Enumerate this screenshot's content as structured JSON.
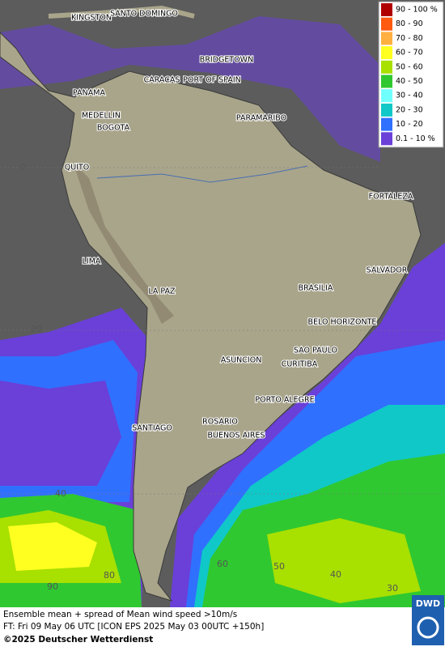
{
  "legend": [
    {
      "label": "90 - 100 %",
      "color": "#b00000"
    },
    {
      "label": "80 - 90",
      "color": "#ff5a10"
    },
    {
      "label": "70 - 80",
      "color": "#ffb040"
    },
    {
      "label": "60 - 70",
      "color": "#ffff20"
    },
    {
      "label": "50 - 60",
      "color": "#a8e000"
    },
    {
      "label": "40 - 50",
      "color": "#30c830"
    },
    {
      "label": "30 - 40",
      "color": "#70ffff"
    },
    {
      "label": "20 - 30",
      "color": "#10c8c8"
    },
    {
      "label": "10 - 20",
      "color": "#3070ff"
    },
    {
      "label": "0.1 - 10 %",
      "color": "#6a40d8"
    }
  ],
  "cities": [
    "KINGSTON",
    "SANTO DOMINGO",
    "BRIDGETOWN",
    "CARACAS",
    "PORT OF SPAIN",
    "PANAMA",
    "MEDELLIN",
    "BOGOTA",
    "PARAMARIBO",
    "QUITO",
    "FORTALEZA",
    "LIMA",
    "SALVADOR",
    "BRASILIA",
    "LA PAZ",
    "BELO HORIZONTE",
    "SAO PAULO",
    "ASUNCION",
    "CURITIBA",
    "PORTO ALEGRE",
    "SANTIAGO",
    "ROSARIO",
    "BUENOS AIRES"
  ],
  "grid_labels": [
    "0",
    "20",
    "40",
    "90",
    "80",
    "60",
    "50",
    "40",
    "30"
  ],
  "footer": {
    "line1": "Ensemble mean + spread of Mean wind speed >10m/s",
    "line2": "FT: Fri 09 May 06 UTC [ICON EPS 2025 May 03 00UTC +150h]",
    "copyright": "©2025 Deutscher Wetterdienst",
    "logo": "DWD"
  }
}
